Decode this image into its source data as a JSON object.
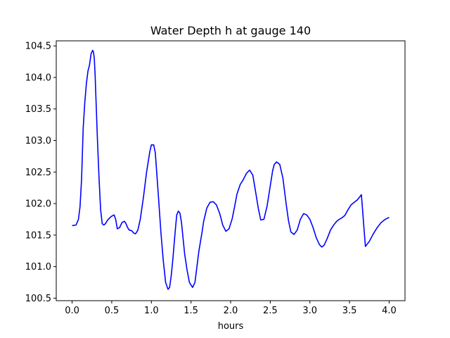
{
  "chart_data": {
    "type": "line",
    "title": "Water Depth h at gauge 140",
    "xlabel": "hours",
    "ylabel": "",
    "xlim": [
      -0.2,
      4.2
    ],
    "ylim": [
      100.46,
      104.58
    ],
    "xticks": [
      "0.0",
      "0.5",
      "1.0",
      "1.5",
      "2.0",
      "2.5",
      "3.0",
      "3.5",
      "4.0"
    ],
    "yticks": [
      "100.5",
      "101.0",
      "101.5",
      "102.0",
      "102.5",
      "103.0",
      "103.5",
      "104.0",
      "104.5"
    ],
    "grid": false,
    "series": [
      {
        "color": "#0000ff",
        "x": [
          0.0,
          0.05,
          0.08,
          0.1,
          0.12,
          0.14,
          0.16,
          0.18,
          0.2,
          0.22,
          0.24,
          0.26,
          0.27,
          0.28,
          0.29,
          0.3,
          0.32,
          0.34,
          0.36,
          0.38,
          0.4,
          0.42,
          0.45,
          0.48,
          0.5,
          0.53,
          0.55,
          0.57,
          0.6,
          0.63,
          0.66,
          0.68,
          0.7,
          0.72,
          0.75,
          0.78,
          0.8,
          0.83,
          0.86,
          0.9,
          0.94,
          0.98,
          1.0,
          1.03,
          1.05,
          1.07,
          1.09,
          1.12,
          1.15,
          1.18,
          1.21,
          1.23,
          1.25,
          1.27,
          1.3,
          1.32,
          1.34,
          1.36,
          1.38,
          1.4,
          1.42,
          1.45,
          1.48,
          1.52,
          1.55,
          1.58,
          1.6,
          1.62,
          1.64,
          1.66,
          1.7,
          1.74,
          1.78,
          1.82,
          1.86,
          1.88,
          1.9,
          1.94,
          1.98,
          2.02,
          2.05,
          2.08,
          2.12,
          2.16,
          2.2,
          2.24,
          2.28,
          2.32,
          2.35,
          2.38,
          2.42,
          2.46,
          2.5,
          2.53,
          2.55,
          2.58,
          2.62,
          2.66,
          2.7,
          2.73,
          2.76,
          2.8,
          2.84,
          2.88,
          2.92,
          2.96,
          3.0,
          3.04,
          3.08,
          3.12,
          3.15,
          3.18,
          3.22,
          3.26,
          3.3,
          3.34,
          3.37,
          3.4,
          3.44,
          3.48,
          3.52,
          3.56,
          3.6,
          3.65,
          3.7,
          3.75,
          3.8,
          3.85,
          3.9,
          3.95,
          4.0
        ],
        "values": [
          101.65,
          101.66,
          101.75,
          101.95,
          102.4,
          103.2,
          103.6,
          103.9,
          104.1,
          104.2,
          104.38,
          104.43,
          104.4,
          104.3,
          104.05,
          103.7,
          103.0,
          102.4,
          101.9,
          101.68,
          101.66,
          101.68,
          101.74,
          101.78,
          101.8,
          101.82,
          101.75,
          101.6,
          101.62,
          101.7,
          101.72,
          101.68,
          101.62,
          101.58,
          101.57,
          101.53,
          101.52,
          101.58,
          101.75,
          102.1,
          102.5,
          102.82,
          102.93,
          102.93,
          102.8,
          102.45,
          102.1,
          101.55,
          101.1,
          100.75,
          100.64,
          100.67,
          100.85,
          101.1,
          101.55,
          101.82,
          101.88,
          101.85,
          101.7,
          101.45,
          101.2,
          100.95,
          100.75,
          100.67,
          100.75,
          101.05,
          101.25,
          101.4,
          101.55,
          101.72,
          101.93,
          102.02,
          102.03,
          101.98,
          101.85,
          101.76,
          101.66,
          101.56,
          101.6,
          101.76,
          101.95,
          102.15,
          102.3,
          102.38,
          102.48,
          102.53,
          102.45,
          102.15,
          101.92,
          101.74,
          101.75,
          101.96,
          102.28,
          102.52,
          102.62,
          102.66,
          102.62,
          102.4,
          102.0,
          101.73,
          101.55,
          101.51,
          101.58,
          101.75,
          101.84,
          101.82,
          101.75,
          101.62,
          101.46,
          101.35,
          101.31,
          101.34,
          101.45,
          101.58,
          101.66,
          101.72,
          101.75,
          101.77,
          101.81,
          101.9,
          101.98,
          102.02,
          102.06,
          102.14,
          101.32,
          101.4,
          101.52,
          101.62,
          101.7,
          101.75,
          101.78
        ]
      }
    ]
  }
}
